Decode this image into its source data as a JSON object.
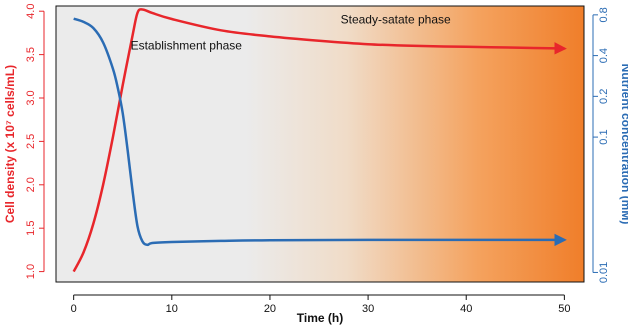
{
  "chart_data": {
    "type": "line",
    "x": {
      "label": "Time (h)",
      "ticks": [
        0,
        10,
        20,
        30,
        40,
        50
      ],
      "range": [
        -1.8,
        52
      ]
    },
    "y_left": {
      "label": "Cell density (x 10⁷ cells/mL)",
      "ticks": [
        1.0,
        1.5,
        2.0,
        2.5,
        3.0,
        3.5,
        4.0
      ],
      "tick_labels": [
        "1.0",
        "1.5",
        "2.0",
        "2.5",
        "3.0",
        "3.5",
        "4.0"
      ],
      "range": [
        0.88,
        4.06
      ],
      "color": "#e8262b"
    },
    "y_right": {
      "label": "Nutrient concentration (mM)",
      "scale": "log",
      "ticks": [
        0.01,
        0.1,
        0.2,
        0.4,
        0.8
      ],
      "tick_labels": [
        "0.01",
        "0.1",
        "0.2",
        "0.4",
        "0.8"
      ],
      "range": [
        0.0085,
        0.93
      ],
      "color": "#2b6cb4"
    },
    "series": [
      {
        "axis": "left",
        "color": "#e8262b",
        "points": [
          [
            0,
            1.0
          ],
          [
            1,
            1.22
          ],
          [
            2,
            1.55
          ],
          [
            3,
            2.0
          ],
          [
            4,
            2.55
          ],
          [
            5,
            3.15
          ],
          [
            6,
            3.72
          ],
          [
            6.5,
            3.98
          ],
          [
            7,
            4.02
          ],
          [
            8,
            3.98
          ],
          [
            10,
            3.91
          ],
          [
            15,
            3.78
          ],
          [
            20,
            3.71
          ],
          [
            25,
            3.66
          ],
          [
            30,
            3.62
          ],
          [
            35,
            3.6
          ],
          [
            40,
            3.59
          ],
          [
            45,
            3.58
          ],
          [
            50,
            3.57
          ]
        ]
      },
      {
        "axis": "right",
        "color": "#2b6cb4",
        "points": [
          [
            0,
            0.75
          ],
          [
            1,
            0.71
          ],
          [
            2,
            0.64
          ],
          [
            3,
            0.5
          ],
          [
            4,
            0.32
          ],
          [
            4.5,
            0.23
          ],
          [
            5,
            0.15
          ],
          [
            5.5,
            0.08
          ],
          [
            6,
            0.04
          ],
          [
            6.5,
            0.022
          ],
          [
            7,
            0.017
          ],
          [
            7.5,
            0.016
          ],
          [
            8,
            0.0165
          ],
          [
            10,
            0.0168
          ],
          [
            15,
            0.0171
          ],
          [
            20,
            0.0173
          ],
          [
            30,
            0.0174
          ],
          [
            40,
            0.0174
          ],
          [
            50,
            0.0174
          ]
        ]
      }
    ],
    "annotations": [
      {
        "text": "Establishment phase",
        "x": 5.8,
        "y": 3.56
      },
      {
        "text": "Steady-satate phase",
        "x": 27.2,
        "y": 3.86
      }
    ],
    "background": {
      "gradient": [
        "#ebebeb",
        "#ebebeb",
        "#f0dcc8",
        "#f4a25e",
        "#f07e2a"
      ]
    }
  }
}
